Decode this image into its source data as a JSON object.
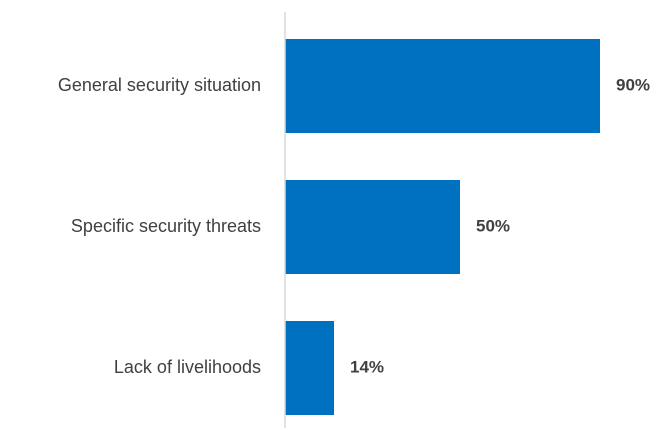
{
  "chart_data": {
    "type": "bar",
    "orientation": "horizontal",
    "categories": [
      "General security situation",
      "Specific security threats",
      "Lack of livelihoods"
    ],
    "values": [
      90,
      50,
      14
    ],
    "value_labels": [
      "90%",
      "50%",
      "14%"
    ],
    "xlim": [
      0,
      100
    ],
    "title": "",
    "xlabel": "",
    "ylabel": "",
    "grid": false,
    "legend": "none",
    "colors": {
      "bar": "#0070C0",
      "axis": "#d9d9d9",
      "text": "#404040"
    }
  }
}
